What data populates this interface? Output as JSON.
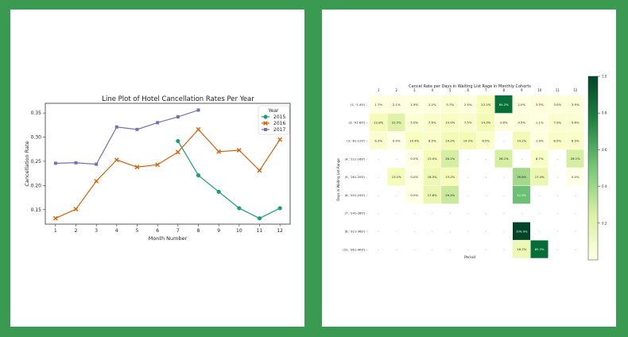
{
  "chart_data": [
    {
      "type": "line",
      "title": "Line Plot of Hotel Cancellation Rates Per Year",
      "xlabel": "Month Number",
      "ylabel": "Cancellation Rate",
      "x": [
        1,
        2,
        3,
        4,
        5,
        6,
        7,
        8,
        9,
        10,
        11,
        12
      ],
      "xlim": [
        0.5,
        12.5
      ],
      "ylim": [
        0.12,
        0.37
      ],
      "yticks": [
        0.15,
        0.2,
        0.25,
        0.3,
        0.35
      ],
      "ytick_labels": [
        "0.15",
        "0.20",
        "0.25",
        "0.30",
        "0.35"
      ],
      "grid": false,
      "legend": {
        "title": "Year",
        "placement": "top-right"
      },
      "series": [
        {
          "name": "2015",
          "color": "#1b9e77",
          "marker": "circle",
          "x": [
            7,
            8,
            9,
            10,
            11,
            12
          ],
          "values": [
            0.292,
            0.221,
            0.187,
            0.153,
            0.132,
            0.153
          ]
        },
        {
          "name": "2016",
          "color": "#d95f02",
          "marker": "x",
          "x": [
            1,
            2,
            3,
            4,
            5,
            6,
            7,
            8,
            9,
            10,
            11,
            12
          ],
          "values": [
            0.132,
            0.151,
            0.209,
            0.253,
            0.238,
            0.243,
            0.269,
            0.316,
            0.27,
            0.273,
            0.231,
            0.295
          ]
        },
        {
          "name": "2017",
          "color": "#7570b3",
          "marker": "square",
          "x": [
            1,
            2,
            3,
            4,
            5,
            6,
            7,
            8
          ],
          "values": [
            0.246,
            0.247,
            0.244,
            0.321,
            0.316,
            0.33,
            0.342,
            0.356
          ]
        }
      ]
    },
    {
      "type": "heatmap",
      "title": "Cancel Rate per Days in Waiting List Rage in Monthly Cohorts",
      "xlabel": "Period",
      "ylabel": "Days in Waiting List Range",
      "columns": [
        "1",
        "2",
        "3",
        "4",
        "5",
        "6",
        "7",
        "8",
        "9",
        "10",
        "11",
        "12"
      ],
      "rows": [
        "(1, '1-40')",
        "(2, '41-80')",
        "(3, '81-120')",
        "(4, '121-160')",
        "(5, '161-200')",
        "(6, '201-240')",
        "(7, '241-280')",
        "(8, '321-360')",
        "(10, '361-400')"
      ],
      "cells": [
        [
          "1.7%",
          "2.1%",
          "1.9%",
          "2.2%",
          "5.7%",
          "2.5%",
          "12.2%",
          "84.2%",
          "2.0%",
          "3.5%",
          "3.0%",
          "3.9%"
        ],
        [
          "12.8%",
          "22.5%",
          "5.0%",
          "7.6%",
          "10.0%",
          "7.5%",
          "14.3%",
          "2.8%",
          "3.5%",
          "1.1%",
          "7.0%",
          "5.6%"
        ],
        [
          "6.3%",
          "0.0%",
          "10.4%",
          "8.5%",
          "14.2%",
          "14.2%",
          "8.5%",
          "-",
          "14.2%",
          "1.9%",
          "8.5%",
          "8.5%"
        ],
        [
          "-",
          "-",
          "0.0%",
          "13.0%",
          "26.1%",
          "-",
          "-",
          "26.1%",
          "-",
          "8.7%",
          "-",
          "26.1%"
        ],
        [
          "-",
          "13.2%",
          "0.0%",
          "16.5%",
          "13.2%",
          "-",
          "-",
          "-",
          "39.6%",
          "17.4%",
          "-",
          "0.0%"
        ],
        [
          "-",
          "-",
          "0.0%",
          "17.6%",
          "29.4%",
          "-",
          "-",
          "-",
          "52.9%",
          "-",
          "-",
          "-"
        ],
        [
          "-",
          "-",
          "-",
          "-",
          "-",
          "-",
          "-",
          "-",
          "-",
          "-",
          "-",
          "-"
        ],
        [
          "-",
          "-",
          "-",
          "-",
          "-",
          "-",
          "-",
          "-",
          "100.0%",
          "-",
          "-",
          "-"
        ],
        [
          "-",
          "-",
          "-",
          "-",
          "-",
          "-",
          "-",
          "-",
          "16.7%",
          "85.3%",
          "-",
          "-"
        ]
      ],
      "colorbar": {
        "colormap": "YlGn",
        "range": [
          0,
          1.0
        ],
        "ticks": [
          0.2,
          0.4,
          0.6,
          0.8,
          1.0
        ],
        "tick_labels": [
          "0.2",
          "0.4",
          "0.6",
          "0.8",
          "1.0"
        ]
      }
    }
  ]
}
